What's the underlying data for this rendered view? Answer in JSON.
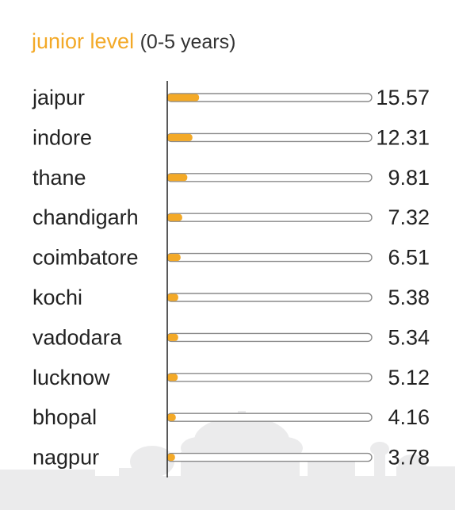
{
  "heading": {
    "level_text": "junior level",
    "range_text": "(0-5 years)"
  },
  "colors": {
    "accent": "#f3a927",
    "track_border": "#8a8a8a",
    "axis": "#222222",
    "skyline": "#ebebec"
  },
  "chart_data": {
    "type": "bar",
    "orientation": "horizontal",
    "title": "junior level (0-5 years)",
    "categories": [
      "jaipur",
      "indore",
      "thane",
      "chandigarh",
      "coimbatore",
      "kochi",
      "vadodara",
      "lucknow",
      "bhopal",
      "nagpur"
    ],
    "values": [
      15.57,
      12.31,
      9.81,
      7.32,
      6.51,
      5.38,
      5.34,
      5.12,
      4.16,
      3.78
    ],
    "value_labels": [
      "15.57",
      "12.31",
      "9.81",
      "7.32",
      "6.51",
      "5.38",
      "5.34",
      "5.12",
      "4.16",
      "3.78"
    ],
    "xlim": [
      0,
      100
    ],
    "grid": false,
    "legend": "none"
  }
}
